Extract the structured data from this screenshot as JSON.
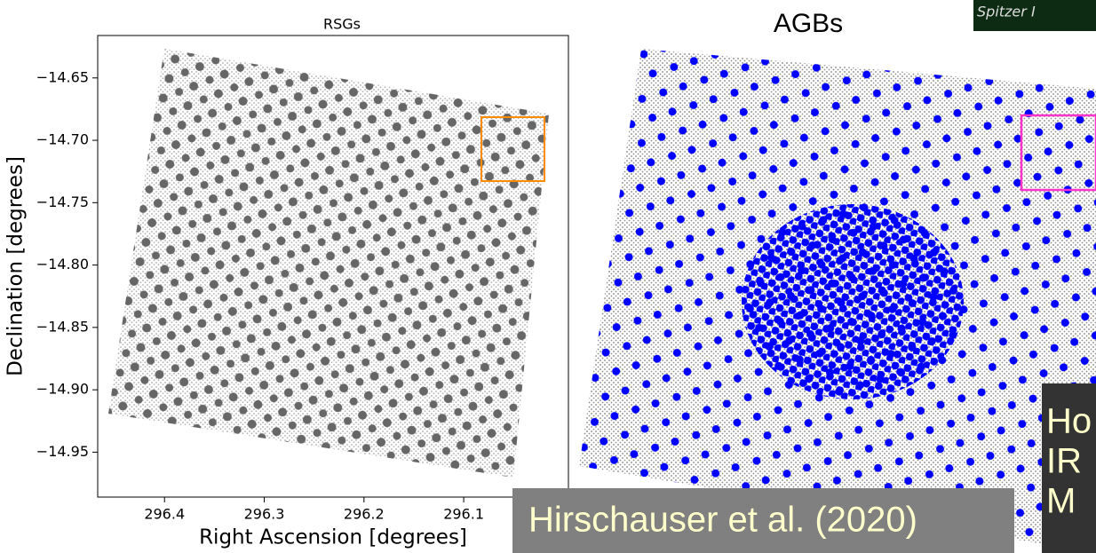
{
  "slide": {
    "image_caption": "Spitzer I",
    "citation": "Hirschauser et al. (2020)",
    "side_note_lines": [
      "Ho",
      "IR",
      "M"
    ]
  },
  "chart_data": [
    {
      "type": "scatter",
      "title": "RSGs",
      "x_label": "Right Ascension [degrees]",
      "y_label": "Declination [degrees]",
      "xlim": [
        296.467,
        295.995
      ],
      "ylim": [
        -14.986,
        -14.616
      ],
      "xticks": [
        296.4,
        296.3,
        296.2,
        296.1
      ],
      "yticks": [
        {
          "value": -14.65,
          "label": "−14.65"
        },
        {
          "value": -14.7,
          "label": "−14.70"
        },
        {
          "value": -14.75,
          "label": "−14.75"
        },
        {
          "value": -14.8,
          "label": "−14.80"
        },
        {
          "value": -14.85,
          "label": "−14.85"
        },
        {
          "value": -14.9,
          "label": "−14.90"
        },
        {
          "value": -14.95,
          "label": "−14.95"
        }
      ],
      "highlight_color": "#ff8c00"
    },
    {
      "type": "scatter",
      "title": "AGBs",
      "highlight_color": "#ff33cc"
    }
  ]
}
